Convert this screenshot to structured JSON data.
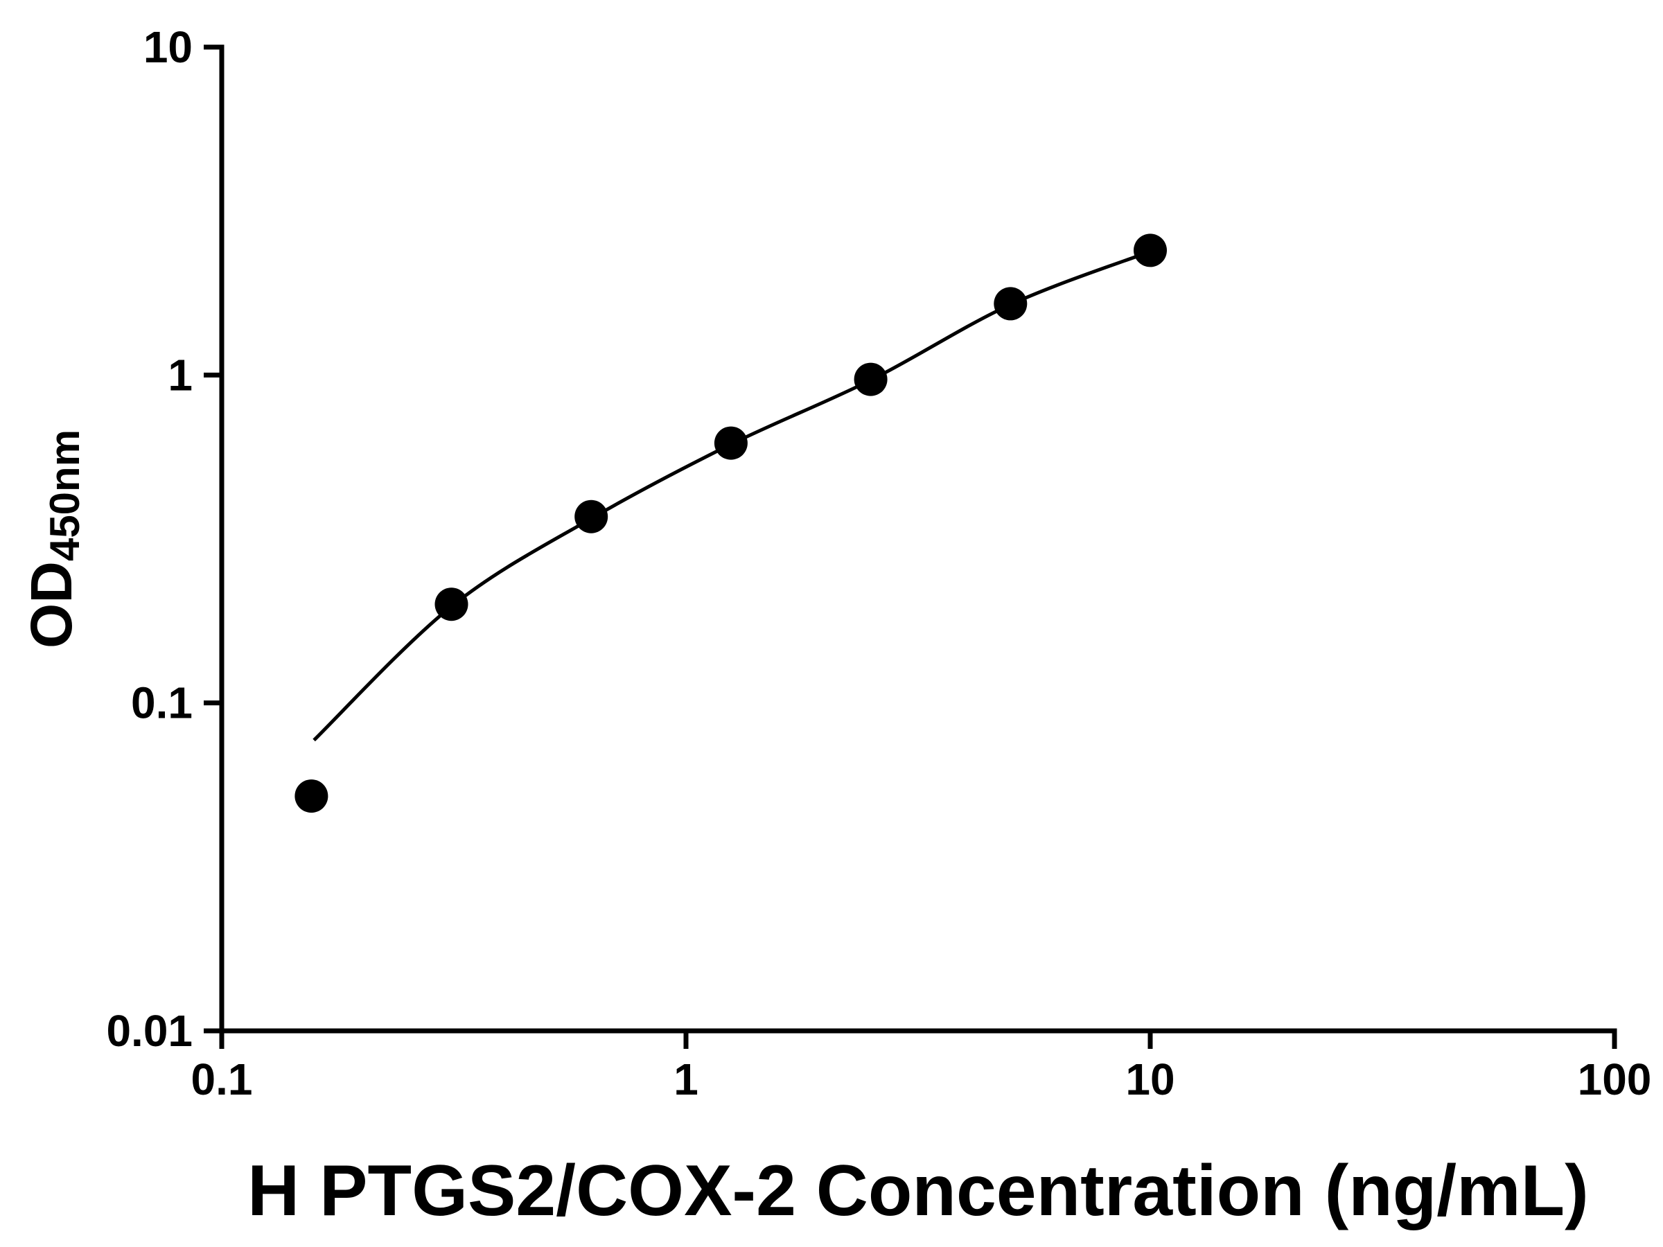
{
  "figure": {
    "background": "#ffffff"
  },
  "chart_data": {
    "type": "scatter",
    "title": "",
    "xlabel": "H PTGS2/COX-2 Concentration (ng/mL)",
    "ylabel_base": "OD",
    "ylabel_sub": "450nm",
    "x_scale": "log10",
    "y_scale": "log10",
    "xlim": [
      0.1,
      100
    ],
    "ylim": [
      0.01,
      10
    ],
    "x_ticks": [
      0.1,
      1,
      10,
      100
    ],
    "x_tick_labels": [
      "0.1",
      "1",
      "10",
      "100"
    ],
    "y_ticks": [
      0.01,
      0.1,
      1,
      10
    ],
    "y_tick_labels": [
      "0.01",
      "0.1",
      "1",
      "10"
    ],
    "grid": false,
    "legend": false,
    "axis_color": "#000000",
    "marker_radius": 24,
    "series": [
      {
        "name": "standard-points",
        "marker": "circle",
        "marker_color": "#000000",
        "points": [
          {
            "x": 0.156,
            "y": 0.052
          },
          {
            "x": 0.3125,
            "y": 0.2
          },
          {
            "x": 0.625,
            "y": 0.37
          },
          {
            "x": 1.25,
            "y": 0.62
          },
          {
            "x": 2.5,
            "y": 0.97
          },
          {
            "x": 5,
            "y": 1.65
          },
          {
            "x": 10,
            "y": 2.4
          }
        ]
      }
    ],
    "fit_curve": {
      "name": "fitted-standard-curve",
      "color": "#000000",
      "points": [
        {
          "x": 0.158,
          "y": 0.077
        },
        {
          "x": 0.3125,
          "y": 0.197
        },
        {
          "x": 0.625,
          "y": 0.365
        },
        {
          "x": 1.25,
          "y": 0.615
        },
        {
          "x": 2.5,
          "y": 0.965
        },
        {
          "x": 5,
          "y": 1.64
        },
        {
          "x": 10,
          "y": 2.38
        }
      ]
    }
  }
}
